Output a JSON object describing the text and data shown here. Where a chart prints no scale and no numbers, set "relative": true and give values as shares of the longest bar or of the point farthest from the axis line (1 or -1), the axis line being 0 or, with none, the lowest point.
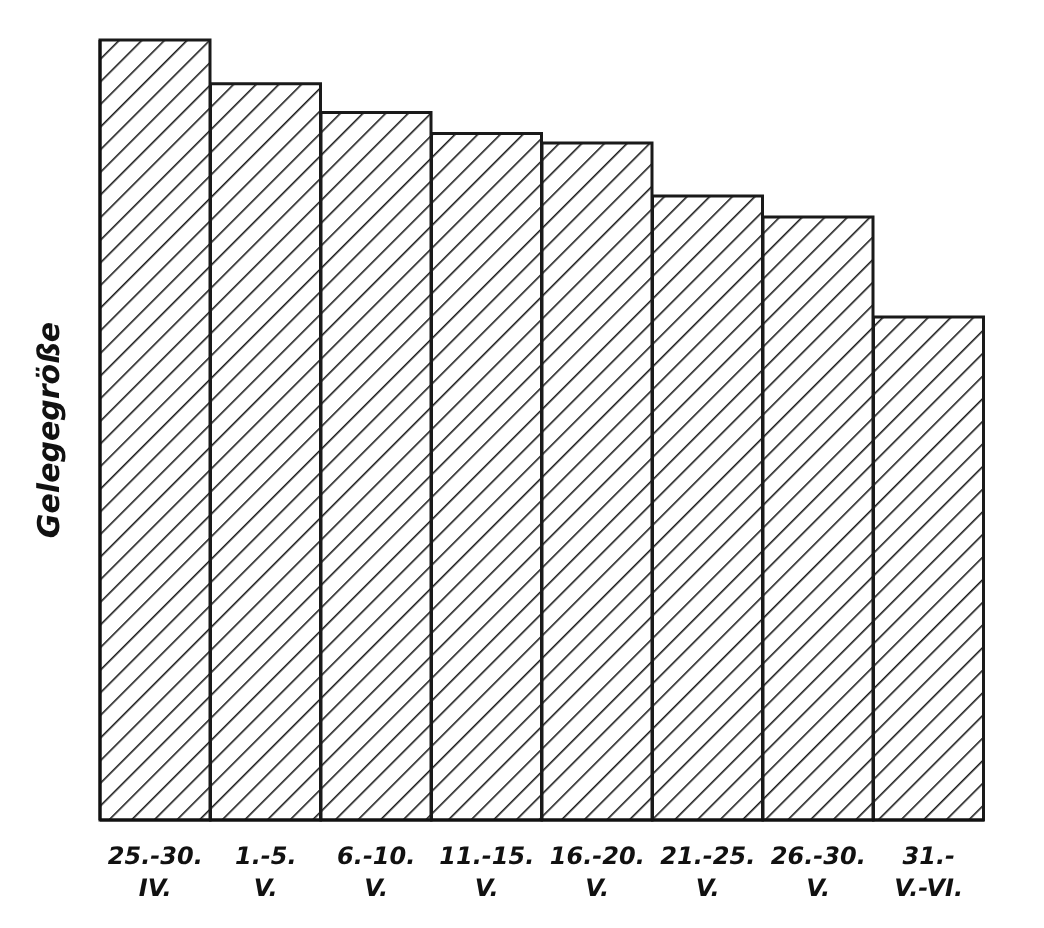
{
  "chart_data": {
    "type": "bar",
    "relative": true,
    "ylabel": "Gelegegröße",
    "categories": [
      "25.-30.\nIV.",
      "1.-5.\nV.",
      "6.-10.\nV.",
      "11.-15.\nV.",
      "16.-20.\nV.",
      "21.-25.\nV.",
      "26.-30.\nV.",
      "31.-\nV.-VI."
    ],
    "values": [
      1,
      0.944,
      0.907,
      0.88,
      0.868,
      0.8,
      0.773,
      0.645
    ],
    "color": "#1a1a1a",
    "grid": false,
    "legend": false
  }
}
